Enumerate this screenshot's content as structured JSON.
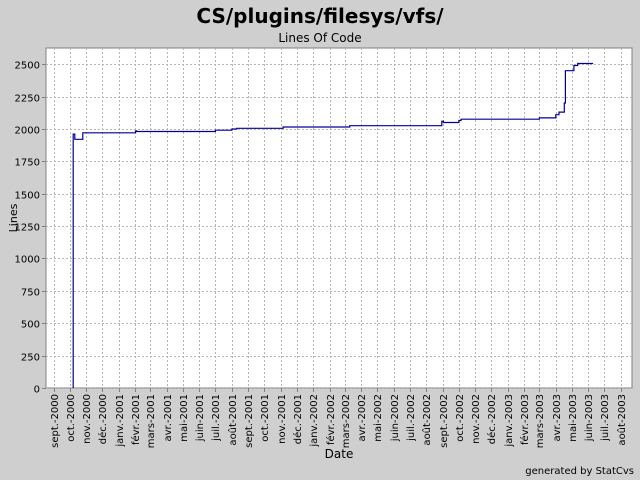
{
  "title": "CS/plugins/filesys/vfs/",
  "subtitle": "Lines Of Code",
  "credit": "generated by StatCvs",
  "chart_data": {
    "type": "line",
    "title": "CS/plugins/filesys/vfs/",
    "subtitle": "Lines Of Code",
    "xlabel": "Date",
    "ylabel": "Lines",
    "ylim": [
      0,
      2625
    ],
    "xlim": [
      "2000-08-17",
      "2003-08-22"
    ],
    "y_ticks": [
      0,
      250,
      500,
      750,
      1000,
      1250,
      1500,
      1750,
      2000,
      2250,
      2500
    ],
    "x_ticks": [
      {
        "date": "2000-09-01",
        "label": "sept.-2000"
      },
      {
        "date": "2000-10-01",
        "label": "oct.-2000"
      },
      {
        "date": "2000-11-01",
        "label": "nov.-2000"
      },
      {
        "date": "2000-12-01",
        "label": "déc.-2000"
      },
      {
        "date": "2001-01-01",
        "label": "janv.-2001"
      },
      {
        "date": "2001-02-01",
        "label": "févr.-2001"
      },
      {
        "date": "2001-03-01",
        "label": "mars-2001"
      },
      {
        "date": "2001-04-01",
        "label": "avr.-2001"
      },
      {
        "date": "2001-05-01",
        "label": "mai-2001"
      },
      {
        "date": "2001-06-01",
        "label": "juin-2001"
      },
      {
        "date": "2001-07-01",
        "label": "juil.-2001"
      },
      {
        "date": "2001-08-01",
        "label": "août-2001"
      },
      {
        "date": "2001-09-01",
        "label": "sept.-2001"
      },
      {
        "date": "2001-10-01",
        "label": "oct.-2001"
      },
      {
        "date": "2001-11-01",
        "label": "nov.-2001"
      },
      {
        "date": "2001-12-01",
        "label": "déc.-2001"
      },
      {
        "date": "2002-01-01",
        "label": "janv.-2002"
      },
      {
        "date": "2002-02-01",
        "label": "févr.-2002"
      },
      {
        "date": "2002-03-01",
        "label": "mars-2002"
      },
      {
        "date": "2002-04-01",
        "label": "avr.-2002"
      },
      {
        "date": "2002-05-01",
        "label": "mai-2002"
      },
      {
        "date": "2002-06-01",
        "label": "juin-2002"
      },
      {
        "date": "2002-07-01",
        "label": "juil.-2002"
      },
      {
        "date": "2002-08-01",
        "label": "août-2002"
      },
      {
        "date": "2002-09-01",
        "label": "sept.-2002"
      },
      {
        "date": "2002-10-01",
        "label": "oct.-2002"
      },
      {
        "date": "2002-11-01",
        "label": "nov.-2002"
      },
      {
        "date": "2002-12-01",
        "label": "déc.-2002"
      },
      {
        "date": "2003-01-01",
        "label": "janv.-2003"
      },
      {
        "date": "2003-02-01",
        "label": "févr.-2003"
      },
      {
        "date": "2003-03-01",
        "label": "mars-2003"
      },
      {
        "date": "2003-04-01",
        "label": "avr.-2003"
      },
      {
        "date": "2003-05-01",
        "label": "mai-2003"
      },
      {
        "date": "2003-06-01",
        "label": "juin-2003"
      },
      {
        "date": "2003-07-01",
        "label": "juil.-2003"
      },
      {
        "date": "2003-08-01",
        "label": "août-2003"
      }
    ],
    "grid": true,
    "line_color": "#000099",
    "series": [
      {
        "points": [
          [
            "2000-10-07",
            0
          ],
          [
            "2000-10-07",
            1960
          ],
          [
            "2000-10-10",
            1960
          ],
          [
            "2000-10-10",
            1920
          ],
          [
            "2000-10-25",
            1920
          ],
          [
            "2000-10-25",
            1970
          ],
          [
            "2001-02-01",
            1970
          ],
          [
            "2001-02-01",
            1985
          ],
          [
            "2001-02-03",
            1985
          ],
          [
            "2001-02-03",
            1980
          ],
          [
            "2001-07-01",
            1980
          ],
          [
            "2001-07-01",
            1990
          ],
          [
            "2001-08-01",
            1990
          ],
          [
            "2001-08-01",
            2000
          ],
          [
            "2001-08-10",
            2000
          ],
          [
            "2001-08-10",
            2005
          ],
          [
            "2001-11-05",
            2005
          ],
          [
            "2001-11-05",
            2015
          ],
          [
            "2002-03-10",
            2015
          ],
          [
            "2002-03-10",
            2025
          ],
          [
            "2002-08-30",
            2025
          ],
          [
            "2002-08-30",
            2060
          ],
          [
            "2002-09-02",
            2060
          ],
          [
            "2002-09-02",
            2050
          ],
          [
            "2002-10-01",
            2050
          ],
          [
            "2002-10-01",
            2065
          ],
          [
            "2002-10-05",
            2065
          ],
          [
            "2002-10-05",
            2075
          ],
          [
            "2003-03-01",
            2075
          ],
          [
            "2003-03-01",
            2085
          ],
          [
            "2003-04-01",
            2085
          ],
          [
            "2003-04-01",
            2110
          ],
          [
            "2003-04-07",
            2110
          ],
          [
            "2003-04-07",
            2130
          ],
          [
            "2003-04-17",
            2130
          ],
          [
            "2003-04-17",
            2200
          ],
          [
            "2003-04-19",
            2200
          ],
          [
            "2003-04-19",
            2450
          ],
          [
            "2003-05-05",
            2450
          ],
          [
            "2003-05-05",
            2490
          ],
          [
            "2003-05-12",
            2490
          ],
          [
            "2003-05-12",
            2505
          ],
          [
            "2003-06-10",
            2505
          ]
        ]
      }
    ]
  }
}
